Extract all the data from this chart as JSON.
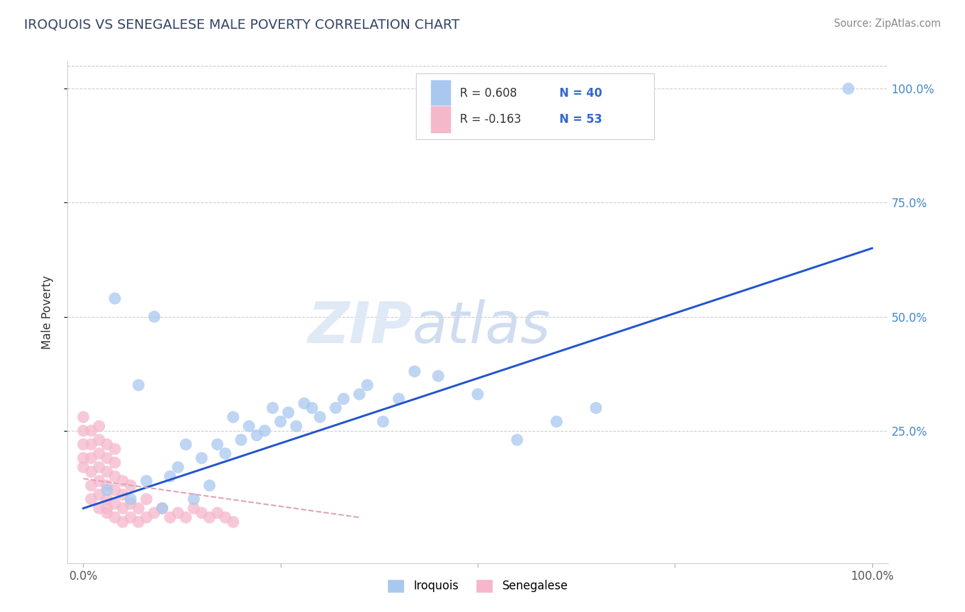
{
  "title": "IROQUOIS VS SENEGALESE MALE POVERTY CORRELATION CHART",
  "source": "Source: ZipAtlas.com",
  "ylabel": "Male Poverty",
  "watermark": "ZIPatlas",
  "xlim": [
    -0.02,
    1.02
  ],
  "ylim": [
    -0.04,
    1.06
  ],
  "ytick_positions": [
    0.25,
    0.5,
    0.75,
    1.0
  ],
  "ytick_labels": [
    "25.0%",
    "50.0%",
    "75.0%",
    "100.0%"
  ],
  "iroquois_color": "#a8c8f0",
  "iroquois_edge_color": "#7aaad8",
  "senegalese_color": "#f5b8cb",
  "senegalese_edge_color": "#e898b0",
  "iroquois_line_color": "#2255cc",
  "senegalese_line_color": "#e0a0b8",
  "R_iroquois": 0.608,
  "N_iroquois": 40,
  "R_senegalese": -0.163,
  "N_senegalese": 53,
  "iroquois_x": [
    0.97,
    0.04,
    0.1,
    0.13,
    0.15,
    0.09,
    0.07,
    0.11,
    0.16,
    0.18,
    0.2,
    0.21,
    0.23,
    0.24,
    0.17,
    0.19,
    0.22,
    0.25,
    0.26,
    0.28,
    0.3,
    0.32,
    0.35,
    0.38,
    0.27,
    0.29,
    0.33,
    0.36,
    0.4,
    0.45,
    0.5,
    0.55,
    0.6,
    0.65,
    0.14,
    0.12,
    0.08,
    0.06,
    0.03,
    0.42
  ],
  "iroquois_y": [
    1.0,
    0.54,
    0.08,
    0.22,
    0.19,
    0.5,
    0.35,
    0.15,
    0.13,
    0.2,
    0.23,
    0.26,
    0.25,
    0.3,
    0.22,
    0.28,
    0.24,
    0.27,
    0.29,
    0.31,
    0.28,
    0.3,
    0.33,
    0.27,
    0.26,
    0.3,
    0.32,
    0.35,
    0.32,
    0.37,
    0.33,
    0.23,
    0.27,
    0.3,
    0.1,
    0.17,
    0.14,
    0.1,
    0.12,
    0.38
  ],
  "senegalese_x": [
    0.0,
    0.0,
    0.0,
    0.0,
    0.0,
    0.01,
    0.01,
    0.01,
    0.01,
    0.01,
    0.01,
    0.02,
    0.02,
    0.02,
    0.02,
    0.02,
    0.02,
    0.02,
    0.03,
    0.03,
    0.03,
    0.03,
    0.03,
    0.03,
    0.03,
    0.04,
    0.04,
    0.04,
    0.04,
    0.04,
    0.04,
    0.05,
    0.05,
    0.05,
    0.05,
    0.06,
    0.06,
    0.06,
    0.07,
    0.07,
    0.08,
    0.08,
    0.09,
    0.1,
    0.11,
    0.12,
    0.13,
    0.14,
    0.15,
    0.16,
    0.17,
    0.18,
    0.19
  ],
  "senegalese_y": [
    0.17,
    0.19,
    0.22,
    0.25,
    0.28,
    0.1,
    0.13,
    0.16,
    0.19,
    0.22,
    0.25,
    0.08,
    0.11,
    0.14,
    0.17,
    0.2,
    0.23,
    0.26,
    0.07,
    0.1,
    0.13,
    0.16,
    0.19,
    0.22,
    0.08,
    0.06,
    0.09,
    0.12,
    0.15,
    0.18,
    0.21,
    0.05,
    0.08,
    0.11,
    0.14,
    0.06,
    0.09,
    0.13,
    0.05,
    0.08,
    0.06,
    0.1,
    0.07,
    0.08,
    0.06,
    0.07,
    0.06,
    0.08,
    0.07,
    0.06,
    0.07,
    0.06,
    0.05
  ]
}
